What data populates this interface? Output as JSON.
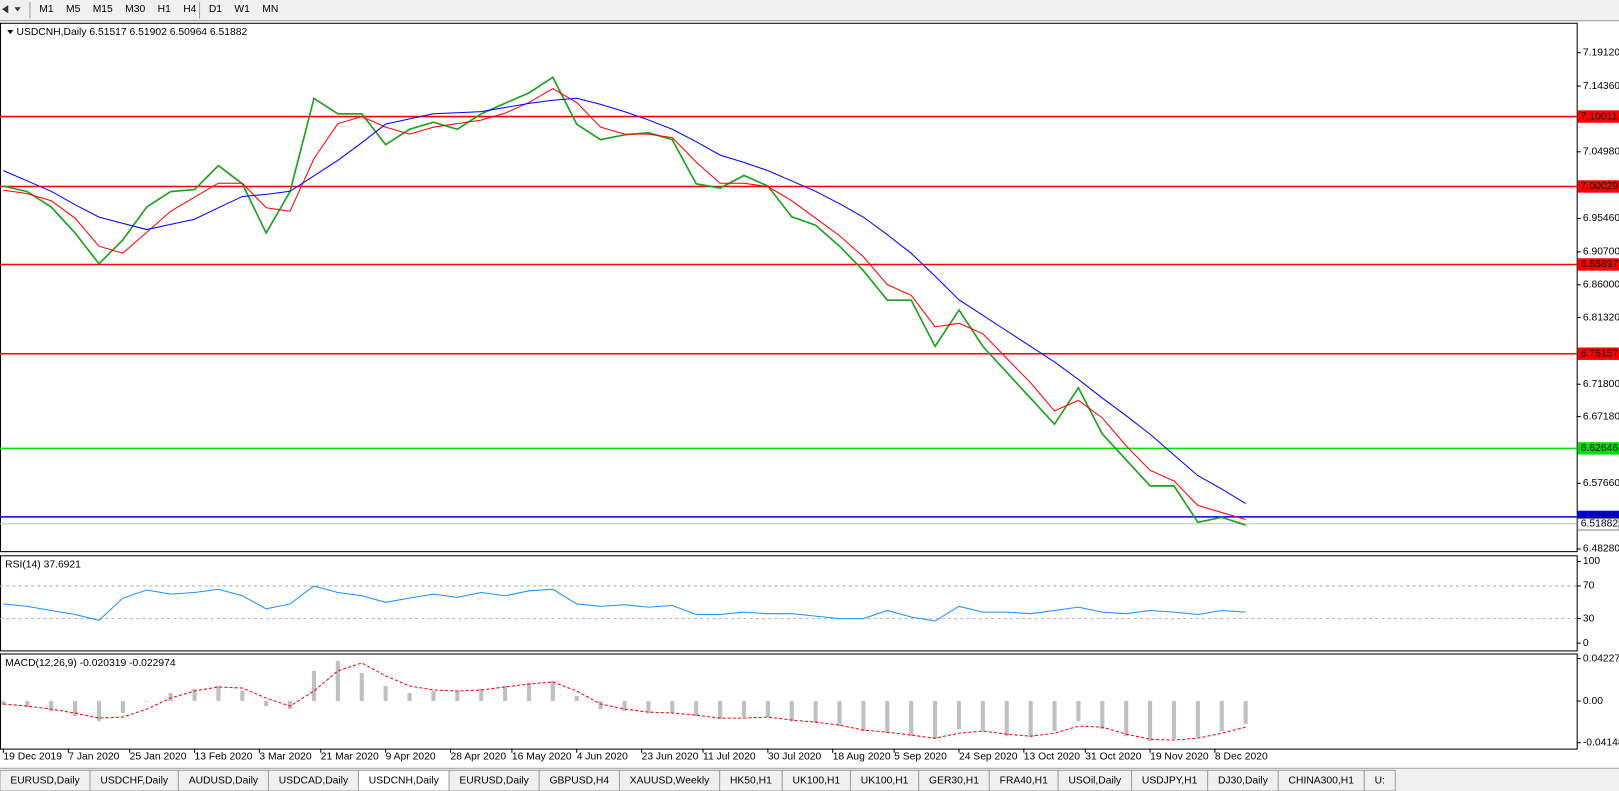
{
  "toolbar": {
    "timeframes": [
      "M1",
      "M5",
      "M15",
      "M30",
      "H1",
      "H4",
      "D1",
      "W1",
      "MN"
    ]
  },
  "tabs": {
    "items": [
      "EURUSD,Daily",
      "USDCHF,Daily",
      "AUDUSD,Daily",
      "USDCAD,Daily",
      "USDCNH,Daily",
      "EURUSD,Daily",
      "GBPUSD,H4",
      "XAUUSD,Weekly",
      "HK50,H1",
      "UK100,H1",
      "UK100,H1",
      "GER30,H1",
      "FRA40,H1",
      "USOil,Daily",
      "USDJPY,H1",
      "DJ30,Daily",
      "CHINA300,H1",
      "U:"
    ],
    "active": 4
  },
  "chart_data": [
    {
      "type": "line",
      "title": "USDCNH,Daily",
      "ohlc": [
        6.51517,
        6.51902,
        6.50964,
        6.51882
      ],
      "x": [
        "2019-12-19",
        "2019-12-26",
        "2020-01-02",
        "2020-01-09",
        "2020-01-16",
        "2020-01-23",
        "2020-01-30",
        "2020-02-06",
        "2020-02-13",
        "2020-02-20",
        "2020-02-27",
        "2020-03-05",
        "2020-03-12",
        "2020-03-19",
        "2020-03-26",
        "2020-04-02",
        "2020-04-09",
        "2020-04-16",
        "2020-04-23",
        "2020-04-30",
        "2020-05-07",
        "2020-05-14",
        "2020-05-21",
        "2020-05-28",
        "2020-06-04",
        "2020-06-11",
        "2020-06-18",
        "2020-06-25",
        "2020-07-02",
        "2020-07-09",
        "2020-07-16",
        "2020-07-23",
        "2020-07-30",
        "2020-08-06",
        "2020-08-13",
        "2020-08-20",
        "2020-08-27",
        "2020-09-03",
        "2020-09-10",
        "2020-09-17",
        "2020-09-24",
        "2020-10-01",
        "2020-10-08",
        "2020-10-15",
        "2020-10-22",
        "2020-10-29",
        "2020-11-05",
        "2020-11-12",
        "2020-11-19",
        "2020-11-26",
        "2020-12-03",
        "2020-12-10",
        "2020-12-17"
      ],
      "series": [
        {
          "color": "#1fa01f",
          "values": [
            7.001,
            6.993,
            6.971,
            6.934,
            6.89,
            6.924,
            6.971,
            6.993,
            6.996,
            7.03,
            7.004,
            6.934,
            6.993,
            7.126,
            7.104,
            7.104,
            7.06,
            7.082,
            7.092,
            7.082,
            7.104,
            7.119,
            7.134,
            7.156,
            7.089,
            7.067,
            7.074,
            7.077,
            7.067,
            7.004,
            6.998,
            7.016,
            7.001,
            6.957,
            6.945,
            6.915,
            6.88,
            6.838,
            6.838,
            6.772,
            6.824,
            6.772,
            6.735,
            6.698,
            6.661,
            6.713,
            6.647,
            6.61,
            6.573,
            6.573,
            6.521,
            6.528,
            6.517
          ]
        },
        {
          "color": "#ff0000",
          "values": [
            6.995,
            6.99,
            6.98,
            6.955,
            6.915,
            6.905,
            6.935,
            6.965,
            6.985,
            7.005,
            7.005,
            6.97,
            6.965,
            7.04,
            7.09,
            7.1,
            7.085,
            7.075,
            7.085,
            7.09,
            7.095,
            7.105,
            7.12,
            7.14,
            7.12,
            7.085,
            7.075,
            7.075,
            7.07,
            7.035,
            7.005,
            7.005,
            7.0,
            6.98,
            6.955,
            6.93,
            6.9,
            6.86,
            6.845,
            6.8,
            6.805,
            6.79,
            6.755,
            6.72,
            6.68,
            6.695,
            6.67,
            6.63,
            6.595,
            6.58,
            6.545,
            6.535,
            6.525
          ]
        },
        {
          "color": "#0000ff",
          "values": [
            7.023,
            7.0082,
            6.9934,
            6.9743,
            6.9565,
            6.9477,
            6.9388,
            6.9462,
            6.9536,
            6.9698,
            6.9861,
            6.989,
            6.9934,
            7.0156,
            7.0377,
            7.0628,
            7.0894,
            7.0967,
            7.1041,
            7.1056,
            7.1071,
            7.113,
            7.1189,
            7.1233,
            7.1263,
            7.1174,
            7.1071,
            7.0953,
            7.082,
            7.0643,
            7.0451,
            7.0348,
            7.023,
            7.0082,
            6.9934,
            6.9757,
            6.9565,
            6.9315,
            6.9049,
            6.8724,
            6.8385,
            6.8163,
            6.7942,
            6.7721,
            6.7499,
            6.7249,
            6.6983,
            6.6732,
            6.6466,
            6.6171,
            6.5876,
            6.5684,
            6.5477
          ]
        }
      ],
      "levels": [
        {
          "value": 7.10011,
          "color": "#ff0000"
        },
        {
          "value": 7.00029,
          "color": "#ff0000"
        },
        {
          "value": 6.88897,
          "color": "#ff0000"
        },
        {
          "value": 6.76157,
          "color": "#ff0000"
        },
        {
          "value": 6.62646,
          "color": "#00e000"
        },
        {
          "value": 6.52865,
          "color": "#0000ff"
        }
      ],
      "xlim": [
        "2019-12-18",
        "2021-03-24"
      ],
      "xticks": [
        {
          "value": "2019-12-19",
          "label": "19 Dec 2019"
        },
        {
          "value": "2020-01-07",
          "label": "7 Jan 2020"
        },
        {
          "value": "2020-01-25",
          "label": "25 Jan 2020"
        },
        {
          "value": "2020-02-13",
          "label": "13 Feb 2020"
        },
        {
          "value": "2020-03-03",
          "label": "3 Mar 2020"
        },
        {
          "value": "2020-03-21",
          "label": "21 Mar 2020"
        },
        {
          "value": "2020-04-09",
          "label": "9 Apr 2020"
        },
        {
          "value": "2020-04-28",
          "label": "28 Apr 2020"
        },
        {
          "value": "2020-05-16",
          "label": "16 May 2020"
        },
        {
          "value": "2020-06-04",
          "label": "4 Jun 2020"
        },
        {
          "value": "2020-06-23",
          "label": "23 Jun 2020"
        },
        {
          "value": "2020-07-11",
          "label": "11 Jul 2020"
        },
        {
          "value": "2020-07-30",
          "label": "30 Jul 2020"
        },
        {
          "value": "2020-08-18",
          "label": "18 Aug 2020"
        },
        {
          "value": "2020-09-05",
          "label": "5 Sep 2020"
        },
        {
          "value": "2020-09-24",
          "label": "24 Sep 2020"
        },
        {
          "value": "2020-10-13",
          "label": "13 Oct 2020"
        },
        {
          "value": "2020-10-31",
          "label": "31 Oct 2020"
        },
        {
          "value": "2020-11-19",
          "label": "19 Nov 2020"
        },
        {
          "value": "2020-12-08",
          "label": "8 Dec 2020"
        }
      ],
      "ylim": [
        6.4798,
        7.234
      ],
      "yticks": [
        {
          "value": 7.1912,
          "label": "7.19120"
        },
        {
          "value": 7.1436,
          "label": "7.14360"
        },
        {
          "value": 7.0498,
          "label": "7.04980"
        },
        {
          "value": 6.9546,
          "label": "6.95460"
        },
        {
          "value": 6.907,
          "label": "6.90700"
        },
        {
          "value": 6.86,
          "label": "6.86000"
        },
        {
          "value": 6.8132,
          "label": "6.81320"
        },
        {
          "value": 6.718,
          "label": "6.71800"
        },
        {
          "value": 6.6718,
          "label": "6.67180"
        },
        {
          "value": 6.5766,
          "label": "6.57660"
        },
        {
          "value": 6.4828,
          "label": "6.48280"
        }
      ]
    },
    {
      "type": "line",
      "title": "RSI(14)",
      "readout": [
        37.6921
      ],
      "series": [
        {
          "color": "#1e90ff",
          "values": [
            48,
            45,
            40,
            35,
            28,
            55,
            65,
            60,
            62,
            66,
            58,
            42,
            48,
            70,
            62,
            58,
            50,
            55,
            60,
            56,
            62,
            58,
            64,
            66,
            48,
            45,
            47,
            44,
            46,
            35,
            35,
            38,
            36,
            36,
            33,
            30,
            30,
            40,
            32,
            27,
            45,
            38,
            38,
            36,
            40,
            44,
            38,
            36,
            40,
            38,
            35,
            40,
            38
          ]
        }
      ],
      "levels": [
        70,
        30
      ],
      "ylim": [
        -8.9,
        107.6
      ],
      "yticks": [
        100,
        70,
        30,
        0
      ]
    },
    {
      "type": "bar",
      "title": "MACD(12,26,9)",
      "readout": [
        -0.020319,
        -0.022974
      ],
      "series": [
        {
          "type": "bar",
          "color": "#c0c0c0",
          "values": [
            -0.004,
            -0.006,
            -0.01,
            -0.015,
            -0.02,
            -0.012,
            0.0,
            0.008,
            0.012,
            0.015,
            0.01,
            -0.005,
            -0.008,
            0.03,
            0.04,
            0.028,
            0.015,
            0.008,
            0.01,
            0.01,
            0.012,
            0.015,
            0.018,
            0.02,
            0.005,
            -0.008,
            -0.01,
            -0.012,
            -0.012,
            -0.015,
            -0.018,
            -0.016,
            -0.016,
            -0.02,
            -0.022,
            -0.025,
            -0.03,
            -0.032,
            -0.035,
            -0.038,
            -0.028,
            -0.03,
            -0.035,
            -0.036,
            -0.03,
            -0.02,
            -0.028,
            -0.035,
            -0.04,
            -0.038,
            -0.036,
            -0.03,
            -0.023
          ]
        },
        {
          "type": "line",
          "dash": true,
          "color": "#ff0000",
          "values": [
            -0.003,
            -0.005,
            -0.008,
            -0.012,
            -0.017,
            -0.016,
            -0.008,
            0.003,
            0.01,
            0.014,
            0.013,
            0.003,
            -0.005,
            0.01,
            0.03,
            0.038,
            0.025,
            0.015,
            0.011,
            0.01,
            0.011,
            0.014,
            0.017,
            0.019,
            0.01,
            -0.003,
            -0.008,
            -0.011,
            -0.012,
            -0.014,
            -0.017,
            -0.017,
            -0.016,
            -0.019,
            -0.021,
            -0.024,
            -0.029,
            -0.031,
            -0.034,
            -0.037,
            -0.032,
            -0.03,
            -0.033,
            -0.035,
            -0.032,
            -0.025,
            -0.026,
            -0.033,
            -0.038,
            -0.039,
            -0.037,
            -0.032,
            -0.026
          ]
        }
      ],
      "ylim": [
        -0.0474,
        0.0474
      ],
      "yticks": [
        0.042275,
        {
          "value": 0,
          "label": "0.00"
        },
        -0.04148
      ]
    }
  ]
}
